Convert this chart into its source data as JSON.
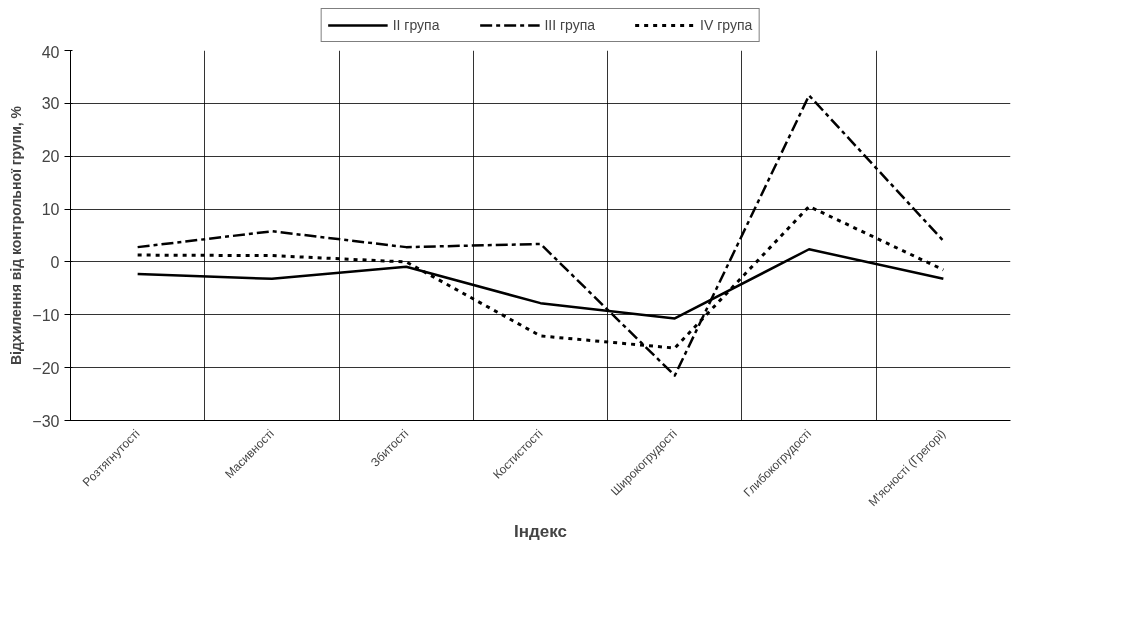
{
  "chart_data": {
    "type": "line",
    "xlabel": "Індекс",
    "ylabel": "Відхилення від контрольної групи, %",
    "categories": [
      "Розтягнутості",
      "Масивності",
      "Збитості",
      "Костистості",
      "Широкогрудості",
      "Глибокогрудості",
      "М'ясності (Грегорі)"
    ],
    "series": [
      {
        "name": "II група",
        "color": "#000000",
        "line_style": "solid",
        "values": [
          -2.3,
          -3.2,
          -0.9,
          -7.8,
          -10.7,
          2.4,
          -3.2
        ]
      },
      {
        "name": "III група",
        "color": "#000000",
        "line_style": "dashed",
        "values": [
          2.8,
          5.8,
          2.8,
          3.4,
          -21.5,
          31.5,
          4
        ]
      },
      {
        "name": "IV група",
        "color": "#000000",
        "line_style": "dotted",
        "values": [
          1.3,
          1.2,
          0.0,
          -14,
          -16.3,
          10.5,
          -1.5
        ]
      }
    ],
    "ylim": [
      -30,
      40
    ],
    "yticks": [
      -30,
      -20,
      -10,
      0,
      10,
      20,
      30,
      40
    ],
    "grid": true,
    "legend": "top",
    "marker": "none"
  }
}
